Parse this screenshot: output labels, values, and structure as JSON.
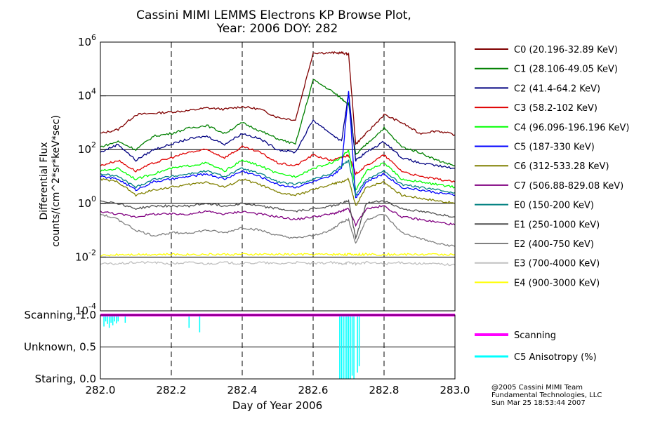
{
  "title": {
    "line1": "Cassini MIMI LEMMS Electrons KP Browse Plot,",
    "line2": "Year: 2006 DOY: 282"
  },
  "credits": {
    "line1": "@2005 Cassini MIMI Team",
    "line2": "Fundamental Technologies, LLC",
    "line3": "Sun Mar 25 18:53:44 2007"
  },
  "chart_data": [
    {
      "type": "line",
      "xlabel": "Day of Year 2006",
      "ylabel": [
        "Differential Flux",
        "counts/(cm^2*sr*keV*sec)"
      ],
      "y_scale": "log",
      "xlim": [
        282.0,
        283.0
      ],
      "ylim_exp": [
        -4,
        6
      ],
      "x_ticks": [
        "282.0",
        "282.2",
        "282.4",
        "282.6",
        "282.8",
        "283.0"
      ],
      "y_tick_exponents": [
        -4,
        -2,
        0,
        2,
        4,
        6
      ],
      "y_tick_base": "10",
      "grid": "horizontal solid lines at decades; dashed verticals every 0.2",
      "legend_position": "right",
      "x": [
        282.0,
        282.05,
        282.1,
        282.15,
        282.2,
        282.25,
        282.3,
        282.35,
        282.4,
        282.45,
        282.5,
        282.55,
        282.6,
        282.65,
        282.68,
        282.7,
        282.72,
        282.75,
        282.8,
        282.85,
        282.9,
        282.95,
        283.0
      ],
      "series": [
        {
          "name": "C0 (20.196-32.89 KeV)",
          "color": "#800000",
          "log10_values": [
            2.6,
            2.75,
            3.3,
            3.35,
            3.4,
            3.45,
            3.55,
            3.5,
            3.6,
            3.5,
            3.2,
            3.1,
            5.6,
            5.6,
            5.6,
            5.55,
            2.2,
            2.6,
            3.3,
            3.0,
            2.6,
            2.7,
            2.55
          ]
        },
        {
          "name": "C1 (28.106-49.05 KeV)",
          "color": "#008000",
          "log10_values": [
            2.1,
            2.3,
            2.0,
            2.5,
            2.6,
            2.8,
            2.9,
            2.6,
            3.0,
            2.7,
            2.4,
            2.2,
            4.6,
            4.2,
            3.9,
            3.7,
            1.8,
            2.2,
            2.8,
            2.1,
            1.9,
            1.6,
            1.4
          ]
        },
        {
          "name": "C2 (41.4-64.2 KeV)",
          "color": "#000080",
          "log10_values": [
            1.9,
            2.2,
            1.6,
            2.0,
            2.2,
            2.4,
            2.5,
            2.2,
            2.6,
            2.4,
            2.0,
            1.9,
            3.1,
            2.6,
            2.3,
            4.1,
            1.6,
            1.9,
            2.3,
            1.7,
            1.5,
            1.4,
            1.3
          ]
        },
        {
          "name": "C3 (58.2-102 KeV)",
          "color": "#e00000",
          "log10_values": [
            1.4,
            1.6,
            1.2,
            1.5,
            1.7,
            1.9,
            2.0,
            1.7,
            2.1,
            1.9,
            1.5,
            1.4,
            1.8,
            1.6,
            1.7,
            1.8,
            1.1,
            1.4,
            1.8,
            1.2,
            1.0,
            0.9,
            0.8
          ]
        },
        {
          "name": "C4 (96.096-196.196 KeV)",
          "color": "#00ff00",
          "log10_values": [
            1.2,
            1.3,
            0.9,
            1.1,
            1.3,
            1.4,
            1.5,
            1.2,
            1.6,
            1.4,
            1.1,
            1.0,
            1.3,
            1.5,
            1.7,
            2.0,
            0.5,
            1.2,
            1.5,
            0.9,
            0.8,
            0.7,
            0.6
          ]
        },
        {
          "name": "C5 (187-330 KeV)",
          "color": "#0000ff",
          "log10_values": [
            1.0,
            0.9,
            0.5,
            0.8,
            0.9,
            1.0,
            1.1,
            0.9,
            1.2,
            1.0,
            0.7,
            0.6,
            0.8,
            1.0,
            1.3,
            4.2,
            0.2,
            0.8,
            1.1,
            0.6,
            0.5,
            0.4,
            0.3
          ]
        },
        {
          "name": "C6 (312-533.28 KeV)",
          "color": "#808000",
          "log10_values": [
            0.9,
            0.8,
            0.3,
            0.5,
            0.6,
            0.7,
            0.8,
            0.6,
            0.9,
            0.7,
            0.4,
            0.3,
            0.5,
            0.7,
            0.8,
            0.9,
            -0.1,
            0.6,
            0.8,
            0.3,
            0.2,
            0.1,
            0.0
          ]
        },
        {
          "name": "C7 (506.88-829.08 KeV)",
          "color": "#800080",
          "log10_values": [
            -0.3,
            -0.4,
            -0.5,
            -0.4,
            -0.4,
            -0.4,
            -0.3,
            -0.4,
            -0.3,
            -0.4,
            -0.5,
            -0.6,
            -0.5,
            -0.4,
            -0.3,
            -0.2,
            -0.8,
            -0.2,
            -0.1,
            -0.5,
            -0.6,
            -0.7,
            -0.8
          ]
        },
        {
          "name": "E0 (150-200 KeV)",
          "color": "#008080",
          "log10_values": [
            1.1,
            1.0,
            0.6,
            0.9,
            1.0,
            1.1,
            1.2,
            1.0,
            1.3,
            1.1,
            0.8,
            0.7,
            0.9,
            1.1,
            1.4,
            1.6,
            0.3,
            0.9,
            1.2,
            0.7,
            0.6,
            0.5,
            0.4
          ]
        },
        {
          "name": "E1 (250-1000 KeV)",
          "color": "#505050",
          "log10_values": [
            0.1,
            0.0,
            -0.2,
            -0.1,
            -0.1,
            -0.1,
            0.0,
            -0.1,
            0.0,
            -0.1,
            -0.2,
            -0.3,
            -0.2,
            -0.1,
            0.0,
            0.1,
            -1.3,
            0.0,
            0.1,
            -0.2,
            -0.3,
            -0.4,
            -0.5
          ]
        },
        {
          "name": "E2 (400-750 KeV)",
          "color": "#808080",
          "log10_values": [
            -0.4,
            -0.6,
            -1.0,
            -1.2,
            -1.1,
            -1.1,
            -1.0,
            -1.1,
            -0.9,
            -1.0,
            -1.2,
            -1.3,
            -1.2,
            -1.0,
            -0.7,
            -0.6,
            -1.5,
            -0.6,
            -0.4,
            -1.1,
            -1.3,
            -1.5,
            -1.6
          ]
        },
        {
          "name": "E3 (700-4000 KeV)",
          "color": "#c0c0c0",
          "log10_values": [
            -2.25,
            -2.25,
            -2.2,
            -2.2,
            -2.25,
            -2.2,
            -2.25,
            -2.2,
            -2.25,
            -2.2,
            -2.25,
            -2.2,
            -2.25,
            -2.2,
            -2.25,
            -2.2,
            -2.25,
            -2.2,
            -2.25,
            -2.2,
            -2.25,
            -2.25,
            -2.3
          ]
        },
        {
          "name": "E4 (900-3000 KeV)",
          "color": "#ffff00",
          "log10_values": [
            -1.95,
            -1.9,
            -1.9,
            -1.9,
            -1.9,
            -1.9,
            -1.9,
            -1.9,
            -1.9,
            -1.9,
            -1.9,
            -1.9,
            -1.9,
            -1.9,
            -1.9,
            -1.9,
            -1.9,
            -1.9,
            -1.9,
            -1.9,
            -1.9,
            -1.9,
            -1.9
          ]
        }
      ]
    },
    {
      "type": "line",
      "xlim": [
        282.0,
        283.0
      ],
      "ylim": [
        0.0,
        1.0
      ],
      "y_ticks": [
        {
          "label": "Scanning, 1.0",
          "value": 1.0
        },
        {
          "label": "Unknown, 0.5",
          "value": 0.5
        },
        {
          "label": "Staring, 0.0",
          "value": 0.0
        }
      ],
      "x_ticks": [
        "282.0",
        "282.2",
        "282.4",
        "282.6",
        "282.8",
        "283.0"
      ],
      "xlabel": "Day of Year 2006",
      "series": [
        {
          "name": "Scanning",
          "color": "#ff00ff",
          "constant": 1.0
        },
        {
          "name": "C5 Anisotropy (%)",
          "color": "#00ffff",
          "spikes": [
            {
              "x": 282.01,
              "y": 0.82
            },
            {
              "x": 282.015,
              "y": 0.9
            },
            {
              "x": 282.02,
              "y": 0.86
            },
            {
              "x": 282.025,
              "y": 0.8
            },
            {
              "x": 282.03,
              "y": 0.88
            },
            {
              "x": 282.035,
              "y": 0.84
            },
            {
              "x": 282.04,
              "y": 0.9
            },
            {
              "x": 282.045,
              "y": 0.87
            },
            {
              "x": 282.05,
              "y": 0.9
            },
            {
              "x": 282.07,
              "y": 0.88
            },
            {
              "x": 282.25,
              "y": 0.8
            },
            {
              "x": 282.28,
              "y": 0.73
            },
            {
              "x": 282.675,
              "y": 0.0
            },
            {
              "x": 282.68,
              "y": 0.0
            },
            {
              "x": 282.685,
              "y": 0.0
            },
            {
              "x": 282.69,
              "y": 0.0
            },
            {
              "x": 282.695,
              "y": 0.0
            },
            {
              "x": 282.7,
              "y": 0.0
            },
            {
              "x": 282.705,
              "y": 0.0
            },
            {
              "x": 282.71,
              "y": 0.05
            },
            {
              "x": 282.715,
              "y": 0.0
            },
            {
              "x": 282.725,
              "y": 0.1
            },
            {
              "x": 282.73,
              "y": 0.2
            }
          ]
        }
      ]
    }
  ]
}
